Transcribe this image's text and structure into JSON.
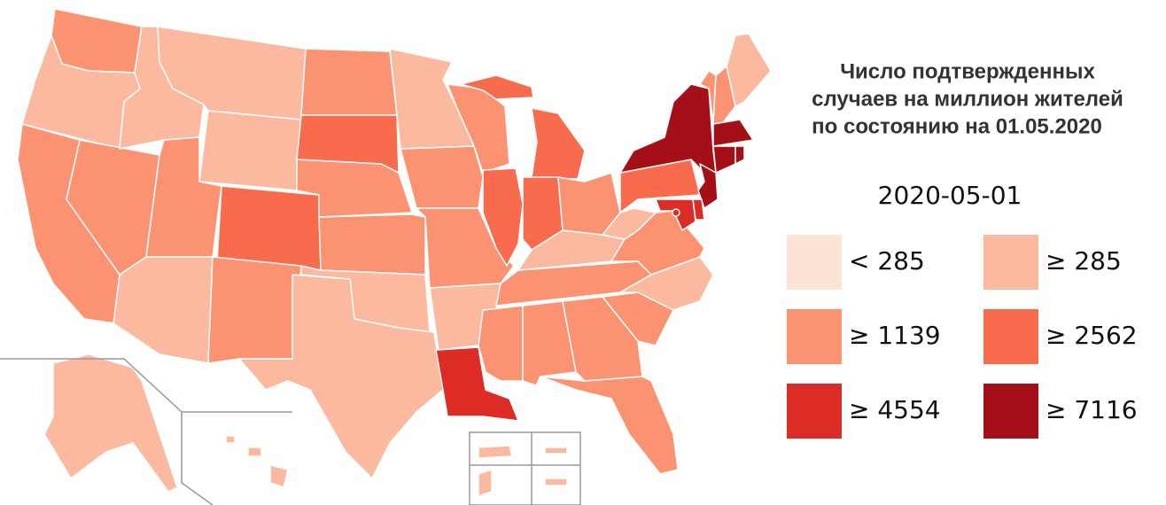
{
  "title": [
    "Число подтвержденных",
    "случаев на миллион жителей",
    "по состоянию на 01.05.2020"
  ],
  "legend": {
    "title": "2020-05-01",
    "items": [
      {
        "label": "< 285",
        "color": "#fde2d6"
      },
      {
        "label": "≥ 285",
        "color": "#fbb99f"
      },
      {
        "label": "≥ 1139",
        "color": "#fb9272"
      },
      {
        "label": "≥ 2562",
        "color": "#f86b4c"
      },
      {
        "label": "≥ 4554",
        "color": "#dd2c26"
      },
      {
        "label": "≥ 7116",
        "color": "#a50f17"
      }
    ]
  }
}
